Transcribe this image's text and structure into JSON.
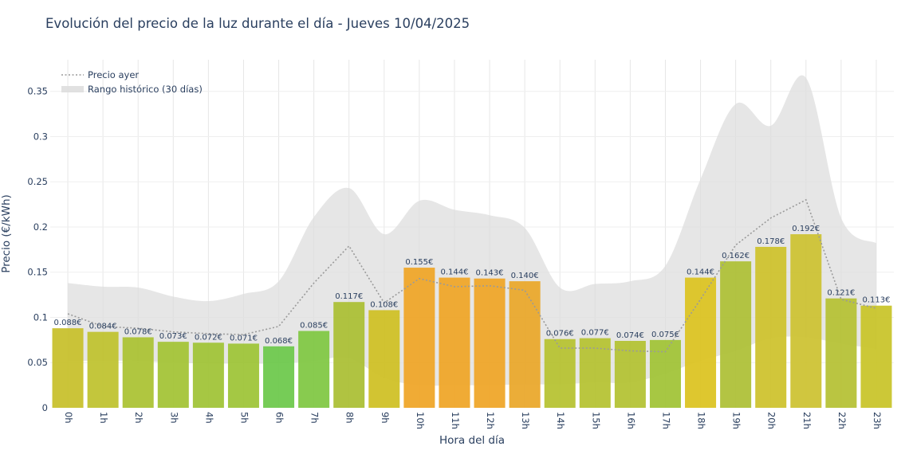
{
  "chart_data": {
    "type": "bar",
    "title": "Evolución del precio de la luz durante el día - Jueves 10/04/2025",
    "xlabel": "Hora del día",
    "ylabel": "Precio (€/kWh)",
    "ylim": [
      0,
      0.385
    ],
    "yticks": [
      "0",
      "0.05",
      "0.1",
      "0.15",
      "0.2",
      "0.25",
      "0.3",
      "0.35"
    ],
    "ytick_values": [
      0,
      0.05,
      0.1,
      0.15,
      0.2,
      0.25,
      0.3,
      0.35
    ],
    "grid": true,
    "legend_position": "top-left",
    "categories": [
      "0h",
      "1h",
      "2h",
      "3h",
      "4h",
      "5h",
      "6h",
      "7h",
      "8h",
      "9h",
      "10h",
      "11h",
      "12h",
      "13h",
      "14h",
      "15h",
      "16h",
      "17h",
      "18h",
      "19h",
      "20h",
      "21h",
      "22h",
      "23h"
    ],
    "values": [
      0.088,
      0.084,
      0.078,
      0.073,
      0.072,
      0.071,
      0.068,
      0.085,
      0.117,
      0.108,
      0.155,
      0.144,
      0.143,
      0.14,
      0.076,
      0.077,
      0.074,
      0.075,
      0.144,
      0.162,
      0.178,
      0.192,
      0.121,
      0.113
    ],
    "value_labels": [
      "0.088€",
      "0.084€",
      "0.078€",
      "0.073€",
      "0.072€",
      "0.071€",
      "0.068€",
      "0.085€",
      "0.117€",
      "0.108€",
      "0.155€",
      "0.144€",
      "0.143€",
      "0.140€",
      "0.076€",
      "0.077€",
      "0.074€",
      "0.075€",
      "0.144€",
      "0.162€",
      "0.178€",
      "0.192€",
      "0.121€",
      "0.113€"
    ],
    "bar_colors": [
      "#c7c02a",
      "#bec22d",
      "#aac232",
      "#a2c334",
      "#9fc335",
      "#9dc436",
      "#6cc84a",
      "#7fc742",
      "#aabe33",
      "#cfbf22",
      "#efa526",
      "#efa526",
      "#efa526",
      "#e9a729",
      "#b6c22f",
      "#b5c230",
      "#b3c231",
      "#a0c335",
      "#dcc31f",
      "#adbf35",
      "#cdc22b",
      "#ccc230",
      "#b5c133",
      "#c8c428"
    ],
    "series": [
      {
        "name": "Precio ayer",
        "style": "dotted-line",
        "color": "#9a9a9a",
        "values": [
          0.104,
          0.09,
          0.088,
          0.084,
          0.082,
          0.081,
          0.09,
          0.138,
          0.179,
          0.116,
          0.143,
          0.134,
          0.135,
          0.13,
          0.066,
          0.066,
          0.063,
          0.062,
          0.12,
          0.18,
          0.21,
          0.23,
          0.12,
          0.11
        ]
      },
      {
        "name": "Rango histórico (30 días)",
        "style": "band",
        "color": "#dcdcdc",
        "upper": [
          0.138,
          0.134,
          0.133,
          0.123,
          0.118,
          0.126,
          0.14,
          0.211,
          0.243,
          0.192,
          0.229,
          0.219,
          0.213,
          0.199,
          0.133,
          0.137,
          0.14,
          0.157,
          0.253,
          0.336,
          0.312,
          0.365,
          0.21,
          0.182
        ],
        "lower": [
          0.052,
          0.052,
          0.052,
          0.05,
          0.049,
          0.049,
          0.049,
          0.052,
          0.055,
          0.033,
          0.025,
          0.025,
          0.025,
          0.026,
          0.026,
          0.028,
          0.028,
          0.038,
          0.052,
          0.063,
          0.077,
          0.078,
          0.071,
          0.065
        ]
      }
    ]
  }
}
